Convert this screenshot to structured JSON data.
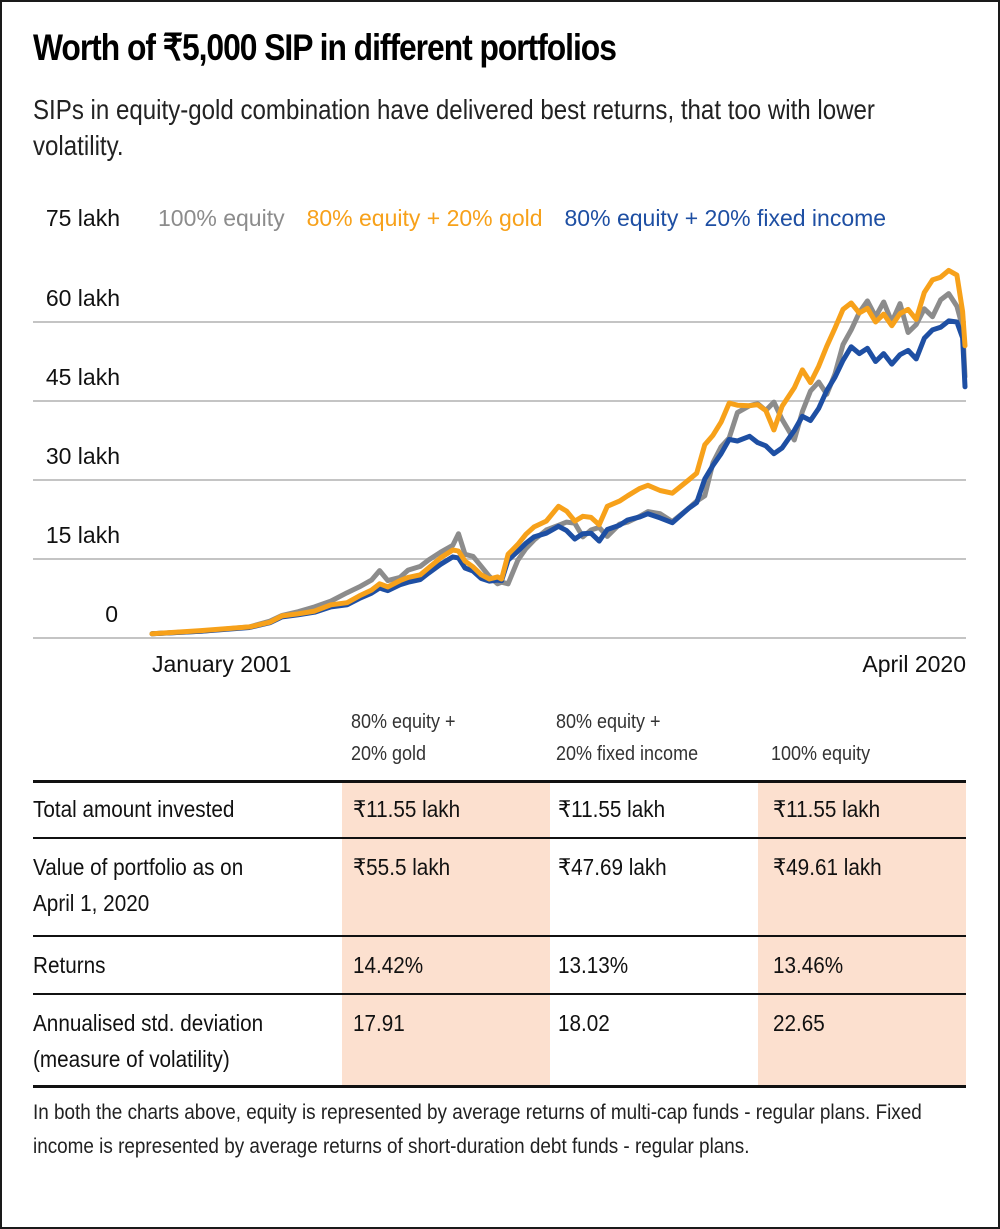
{
  "header": {
    "title": "Worth of ₹5,000 SIP in different portfolios",
    "subtitle": "SIPs in equity-gold combination have delivered best returns, that too with lower volatility."
  },
  "chart_data": {
    "type": "line",
    "title": "Worth of ₹5,000 SIP in different portfolios",
    "xlabel": "",
    "ylabel": "",
    "x_start_label": "January 2001",
    "x_end_label": "April 2020",
    "x_tick_labels": [
      "January 2001",
      "April 2020"
    ],
    "y_tick_labels": [
      "0",
      "15 lakh",
      "30 lakh",
      "45 lakh",
      "60 lakh",
      "75 lakh"
    ],
    "y_ticks": [
      0,
      15,
      30,
      45,
      60,
      75
    ],
    "ylim": [
      0,
      75
    ],
    "y_unit": "lakh",
    "grid": true,
    "legend_position": "top",
    "x": [
      0,
      0.06,
      0.12,
      0.145,
      0.16,
      0.18,
      0.2,
      0.22,
      0.24,
      0.255,
      0.27,
      0.28,
      0.29,
      0.305,
      0.315,
      0.33,
      0.34,
      0.355,
      0.37,
      0.377,
      0.385,
      0.395,
      0.405,
      0.415,
      0.425,
      0.43,
      0.438,
      0.45,
      0.46,
      0.47,
      0.485,
      0.5,
      0.51,
      0.52,
      0.53,
      0.54,
      0.55,
      0.56,
      0.575,
      0.585,
      0.6,
      0.61,
      0.625,
      0.64,
      0.66,
      0.67,
      0.68,
      0.69,
      0.7,
      0.71,
      0.72,
      0.735,
      0.745,
      0.755,
      0.765,
      0.775,
      0.79,
      0.8,
      0.81,
      0.82,
      0.83,
      0.84,
      0.85,
      0.86,
      0.87,
      0.88,
      0.89,
      0.9,
      0.91,
      0.92,
      0.93,
      0.94,
      0.95,
      0.96,
      0.97,
      0.98,
      0.99,
      0.997,
      1.0
    ],
    "series": [
      {
        "name": "100% equity",
        "color": "#8c8c8c",
        "values": [
          0.8,
          1.3,
          2.1,
          3.2,
          4.3,
          5.0,
          5.9,
          7.0,
          8.6,
          9.7,
          11.0,
          12.8,
          10.9,
          11.5,
          12.9,
          13.6,
          14.8,
          16.3,
          17.6,
          19.8,
          15.9,
          15.5,
          13.6,
          11.7,
          10.3,
          10.6,
          10.3,
          14.8,
          17.0,
          18.6,
          20.5,
          21.4,
          22.0,
          21.8,
          19.2,
          20.5,
          21.0,
          19.3,
          21.6,
          22.0,
          23.1,
          24.0,
          23.6,
          22.1,
          24.6,
          26.0,
          27.0,
          33.3,
          36.3,
          38.0,
          42.8,
          44.1,
          44.5,
          43.2,
          44.8,
          41.5,
          37.6,
          43.0,
          46.9,
          48.6,
          46.3,
          50.1,
          55.7,
          58.5,
          61.8,
          64.0,
          61.0,
          63.8,
          60.0,
          63.5,
          58.0,
          59.5,
          62.5,
          61.0,
          64.2,
          65.4,
          63.0,
          59.0,
          49.61
        ]
      },
      {
        "name": "80% equity + 20% gold",
        "color": "#f7a11a",
        "values": [
          0.8,
          1.4,
          2.1,
          3.0,
          4.2,
          4.6,
          5.1,
          6.3,
          6.7,
          8.0,
          9.1,
          10.3,
          9.7,
          10.9,
          11.5,
          12.0,
          13.3,
          15.2,
          16.7,
          16.5,
          14.6,
          13.5,
          12.0,
          11.2,
          11.6,
          11.2,
          15.9,
          17.8,
          19.7,
          21.1,
          22.2,
          25.0,
          24.1,
          22.2,
          23.1,
          22.9,
          21.5,
          25.0,
          26.0,
          27.0,
          28.4,
          29.0,
          28.0,
          27.5,
          30.0,
          31.3,
          36.7,
          38.5,
          41.0,
          44.6,
          44.2,
          44.1,
          44.3,
          43.2,
          39.5,
          44.0,
          47.5,
          50.9,
          48.5,
          51.6,
          55.4,
          58.8,
          62.4,
          63.6,
          61.7,
          62.6,
          60.0,
          61.5,
          59.3,
          61.6,
          62.4,
          60.5,
          65.6,
          68.0,
          68.5,
          69.8,
          68.9,
          62.0,
          55.5
        ]
      },
      {
        "name": "80% equity + 20% fixed income",
        "color": "#1e4fa3",
        "values": [
          0.8,
          1.3,
          2.0,
          2.9,
          4.0,
          4.4,
          4.9,
          5.9,
          6.3,
          7.5,
          8.5,
          9.5,
          9.0,
          10.1,
          10.6,
          11.1,
          12.3,
          14.0,
          15.4,
          15.2,
          13.3,
          12.7,
          11.3,
          10.8,
          11.0,
          10.9,
          14.8,
          16.5,
          18.0,
          19.2,
          19.9,
          21.2,
          20.4,
          18.8,
          19.8,
          19.9,
          18.4,
          20.6,
          21.4,
          22.4,
          23.0,
          23.6,
          22.8,
          21.9,
          24.6,
          25.7,
          30.2,
          32.8,
          35.0,
          37.7,
          37.4,
          38.3,
          37.1,
          36.5,
          35.0,
          36.1,
          39.4,
          42.1,
          41.3,
          43.6,
          47.0,
          49.5,
          52.7,
          55.3,
          54.0,
          55.0,
          52.5,
          54.0,
          52.0,
          53.8,
          54.6,
          53.0,
          56.9,
          58.5,
          59.0,
          60.2,
          60.0,
          57.0,
          47.69
        ]
      }
    ]
  },
  "legend": [
    {
      "label": "100% equity",
      "color": "#8c8c8c"
    },
    {
      "label": "80% equity + 20% gold",
      "color": "#f7a11a"
    },
    {
      "label": "80% equity + 20% fixed income",
      "color": "#1e4fa3"
    }
  ],
  "table": {
    "columns": [
      {
        "label": "80% equity +\n20% gold",
        "highlight": true
      },
      {
        "label": "80% equity +\n20% fixed income",
        "highlight": false
      },
      {
        "label": "100% equity",
        "highlight": true
      }
    ],
    "rows": [
      {
        "label": "Total amount invested",
        "values": [
          "₹11.55 lakh",
          "₹11.55 lakh",
          "₹11.55 lakh"
        ]
      },
      {
        "label": "Value of portfolio as on\nApril 1, 2020",
        "values": [
          "₹55.5 lakh",
          "₹47.69 lakh",
          "₹49.61 lakh"
        ]
      },
      {
        "label": "Returns",
        "values": [
          "14.42%",
          "13.13%",
          "13.46%"
        ]
      },
      {
        "label": "Annualised std. deviation\n(measure of volatility)",
        "values": [
          "17.91",
          "18.02",
          "22.65"
        ]
      }
    ],
    "highlight_color": "#fce0cf"
  },
  "footnote": "In both the charts above, equity is represented by average returns of multi-cap funds - regular plans. Fixed income is represented by average returns of short-duration debt funds - regular plans."
}
